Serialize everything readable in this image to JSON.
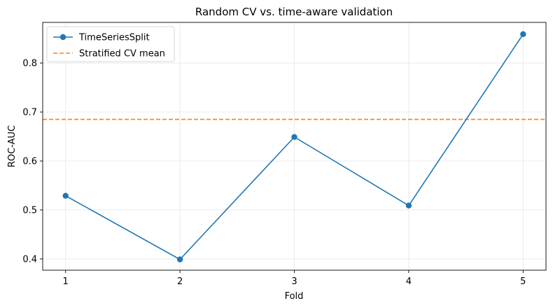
{
  "chart_data": {
    "type": "line",
    "title": "Random CV vs. time-aware validation",
    "xlabel": "Fold",
    "ylabel": "ROC-AUC",
    "x": [
      1,
      2,
      3,
      4,
      5
    ],
    "x_ticks": [
      "1",
      "2",
      "3",
      "4",
      "5"
    ],
    "y_ticks": [
      "0.4",
      "0.5",
      "0.6",
      "0.7",
      "0.8"
    ],
    "xlim": [
      0.8,
      5.2
    ],
    "ylim": [
      0.377,
      0.883
    ],
    "grid": true,
    "legend_position": "top-left",
    "series": [
      {
        "name": "TimeSeriesSplit",
        "values": [
          0.529,
          0.399,
          0.649,
          0.509,
          0.859
        ],
        "color": "#1f77b4",
        "style": "solid",
        "marker": "circle"
      }
    ],
    "reference_lines": [
      {
        "name": "Stratified CV mean",
        "y": 0.685,
        "color": "#ff7f0e",
        "style": "dashed"
      }
    ]
  }
}
